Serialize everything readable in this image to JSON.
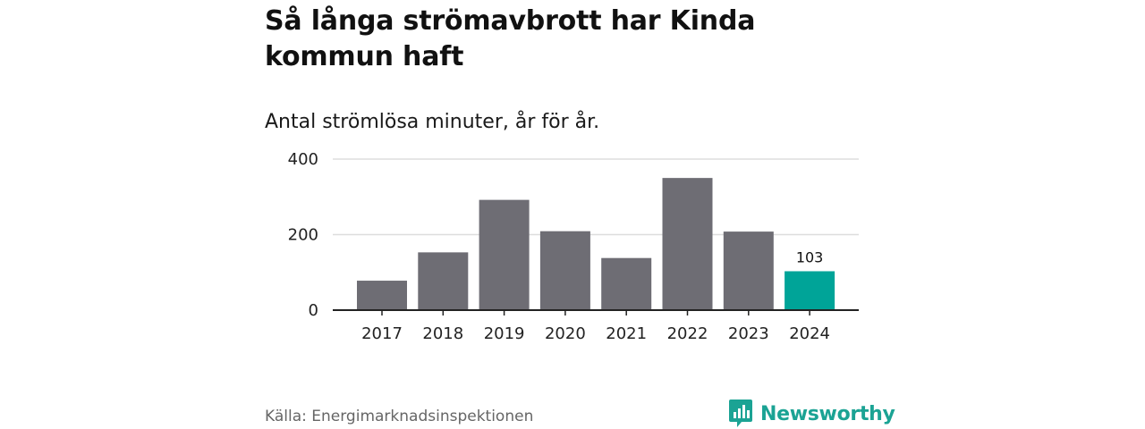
{
  "header": {
    "title": "Så långa strömavbrott har Kinda kommun haft",
    "subtitle": "Antal strömlösa minuter, år för år."
  },
  "chart_data": {
    "type": "bar",
    "title": "Så långa strömavbrott har Kinda kommun haft",
    "subtitle": "Antal strömlösa minuter, år för år.",
    "categories": [
      "2017",
      "2018",
      "2019",
      "2020",
      "2021",
      "2022",
      "2023",
      "2024"
    ],
    "values": [
      78,
      153,
      292,
      209,
      138,
      350,
      208,
      103
    ],
    "ylim": [
      0,
      400
    ],
    "yticks": [
      0,
      200,
      400
    ],
    "xlabel": "",
    "ylabel": "",
    "grid": true,
    "highlight_index": 7,
    "data_labels": [
      {
        "index": 7,
        "text": "103"
      }
    ],
    "colors": {
      "default": "#6e6d74",
      "highlight": "#00a498",
      "grid": "#dddddd",
      "axis": "#222222"
    }
  },
  "footer": {
    "source": "Källa: Energimarknadsinspektionen",
    "brand": "Newsworthy",
    "brand_icon": "bar-chart-logo-icon",
    "brand_color": "#1ba394"
  }
}
